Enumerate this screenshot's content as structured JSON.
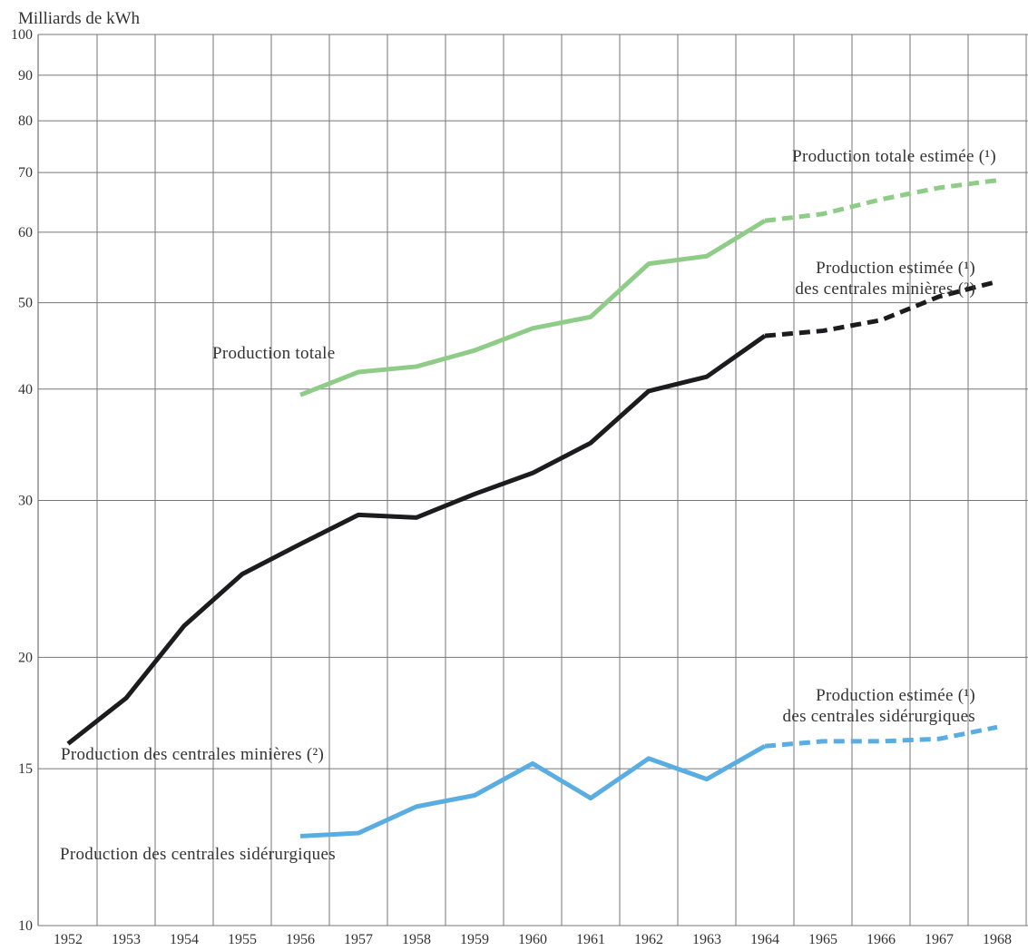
{
  "chart_data": {
    "type": "line",
    "title": "Milliards de kWh",
    "log_scale": true,
    "categories": [
      "1952",
      "1953",
      "1954",
      "1955",
      "1956",
      "1957",
      "1958",
      "1959",
      "1960",
      "1961",
      "1962",
      "1963",
      "1964",
      "1965",
      "1966",
      "1967",
      "1968"
    ],
    "ylim": [
      10,
      100
    ],
    "yticks": [
      10,
      15,
      20,
      30,
      40,
      50,
      60,
      70,
      80,
      90,
      100
    ],
    "grid": true,
    "series": [
      {
        "name": "Production totale",
        "color": "#8fcc88",
        "dashed": false,
        "values": [
          null,
          null,
          null,
          null,
          39.4,
          41.8,
          42.4,
          44.2,
          46.8,
          48.2,
          55.3,
          56.4,
          61.8,
          null,
          null,
          null,
          null
        ]
      },
      {
        "name": "Production totale estimée (¹)",
        "color": "#8fcc88",
        "dashed": true,
        "values": [
          null,
          null,
          null,
          null,
          null,
          null,
          null,
          null,
          null,
          null,
          null,
          null,
          61.8,
          62.9,
          65.3,
          67.3,
          68.6
        ]
      },
      {
        "name": "Production des centrales minières (²)",
        "color": "#1c1c1e",
        "dashed": false,
        "values": [
          16.0,
          18.0,
          21.7,
          24.8,
          26.8,
          28.9,
          28.7,
          30.5,
          32.2,
          34.8,
          39.8,
          41.3,
          45.9,
          null,
          null,
          null,
          null
        ]
      },
      {
        "name": "Production estimée (¹)\ndes centrales minières (²)",
        "color": "#1c1c1e",
        "dashed": true,
        "values": [
          null,
          null,
          null,
          null,
          null,
          null,
          null,
          null,
          null,
          null,
          null,
          null,
          45.9,
          46.5,
          47.8,
          50.8,
          52.8
        ]
      },
      {
        "name": "Production des centrales sidérurgiques",
        "color": "#5aade0",
        "dashed": false,
        "values": [
          null,
          null,
          null,
          null,
          12.6,
          12.7,
          13.6,
          14.0,
          15.2,
          13.9,
          15.4,
          14.6,
          15.9,
          null,
          null,
          null,
          null
        ]
      },
      {
        "name": "Production estimée (¹)\ndes centrales sidérurgiques",
        "color": "#5aade0",
        "dashed": true,
        "values": [
          null,
          null,
          null,
          null,
          null,
          null,
          null,
          null,
          null,
          null,
          null,
          null,
          15.9,
          16.1,
          16.1,
          16.2,
          16.7
        ]
      }
    ]
  }
}
